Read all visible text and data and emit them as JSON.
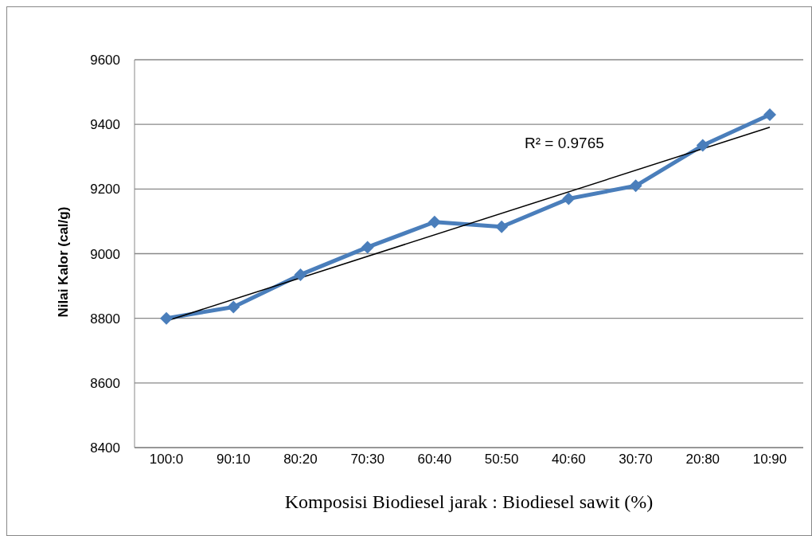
{
  "chart_data": {
    "type": "line",
    "xlabel": "Komposisi Biodiesel jarak : Biodiesel sawit (%)",
    "ylabel": "Nilai Kalor (cal/g)",
    "categories": [
      "100:0",
      "90:10",
      "80:20",
      "70:30",
      "60:40",
      "50:50",
      "40:60",
      "30:70",
      "20:80",
      "10:90"
    ],
    "series": [
      {
        "color": "#4a7ebb",
        "values": [
          8800,
          8835,
          8935,
          9020,
          9098,
          9083,
          9170,
          9210,
          9335,
          9430
        ],
        "marker": "diamond"
      },
      {
        "type": "line",
        "color": "#000000",
        "x": [
          "100:0",
          "10:90"
        ],
        "values": [
          8792,
          9391
        ],
        "marker": "none"
      }
    ],
    "ylim": [
      8400,
      9600
    ],
    "yticks": [
      8400,
      8600,
      8800,
      9000,
      9200,
      9400,
      9600
    ],
    "grid": "y",
    "legend": false,
    "annotations": [
      "R² = 0.9765"
    ]
  }
}
